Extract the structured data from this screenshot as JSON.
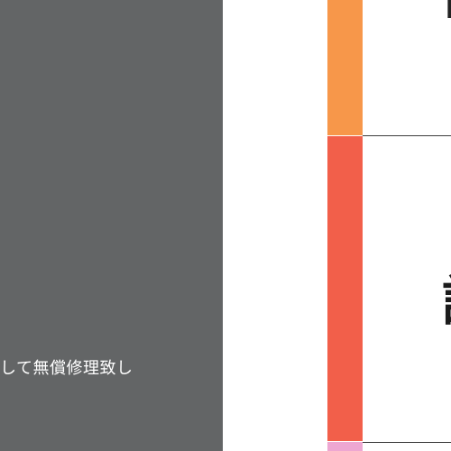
{
  "left_panel": {
    "text": "して無償修理致し"
  },
  "table": {
    "rows": [
      {
        "glyph": "■"
      },
      {
        "glyph": "請"
      }
    ]
  },
  "colors": {
    "panel_gray": "#636566",
    "stripe_orange": "#f7974a",
    "stripe_red": "#f25f4a",
    "stripe_pink": "#eea7d2"
  }
}
